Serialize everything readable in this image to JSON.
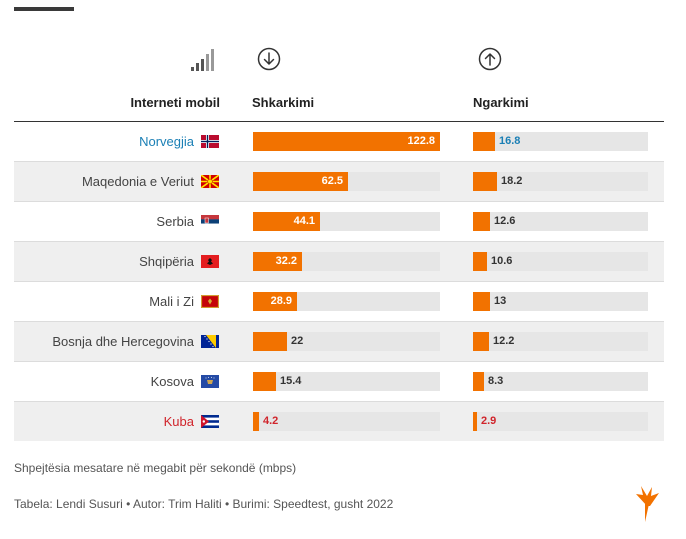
{
  "header": {
    "country_label": "Interneti mobil",
    "download_label": "Shkarkimi",
    "upload_label": "Ngarkimi"
  },
  "icons": {
    "signal": "signal-strength-icon",
    "download": "arrow-down-circle-icon",
    "upload": "arrow-up-circle-icon",
    "logo": "rfe-logo-icon"
  },
  "colors": {
    "bar": "#f27200",
    "track": "#e6e6e6",
    "highlight_top": "#1a7fb5",
    "highlight_bottom": "#d0242b"
  },
  "footnote": "Shpejtësia mesatare në megabit për sekondë (mbps)",
  "source": "Tabela: Lendi Susuri • Autor: Trim Haliti • Burimi: Speedtest, gusht 2022",
  "chart_data": {
    "type": "bar",
    "categories": [
      "Norvegjia",
      "Maqedonia e Veriut",
      "Serbia",
      "Shqipëria",
      "Mali i Zi",
      "Bosnja dhe Hercegovina",
      "Kosova",
      "Kuba"
    ],
    "series": [
      {
        "name": "Shkarkimi",
        "values": [
          122.8,
          62.5,
          44.1,
          32.2,
          28.9,
          22,
          15.4,
          4.2
        ],
        "value_labels": [
          "122.8",
          "62.5",
          "44.1",
          "32.2",
          "28.9",
          "22",
          "15.4",
          "4.2"
        ],
        "max": 122.8
      },
      {
        "name": "Ngarkimi",
        "values": [
          16.8,
          18.2,
          12.6,
          10.6,
          13,
          12.2,
          8.3,
          2.9
        ],
        "value_labels": [
          "16.8",
          "18.2",
          "12.6",
          "10.6",
          "13",
          "12.2",
          "8.3",
          "2.9"
        ],
        "max": 122.8
      }
    ],
    "flags": [
      "norway-flag-icon",
      "north-macedonia-flag-icon",
      "serbia-flag-icon",
      "albania-flag-icon",
      "montenegro-flag-icon",
      "bosnia-flag-icon",
      "kosovo-flag-icon",
      "cuba-flag-icon"
    ],
    "highlight": {
      "0": "blue",
      "7": "red"
    }
  }
}
